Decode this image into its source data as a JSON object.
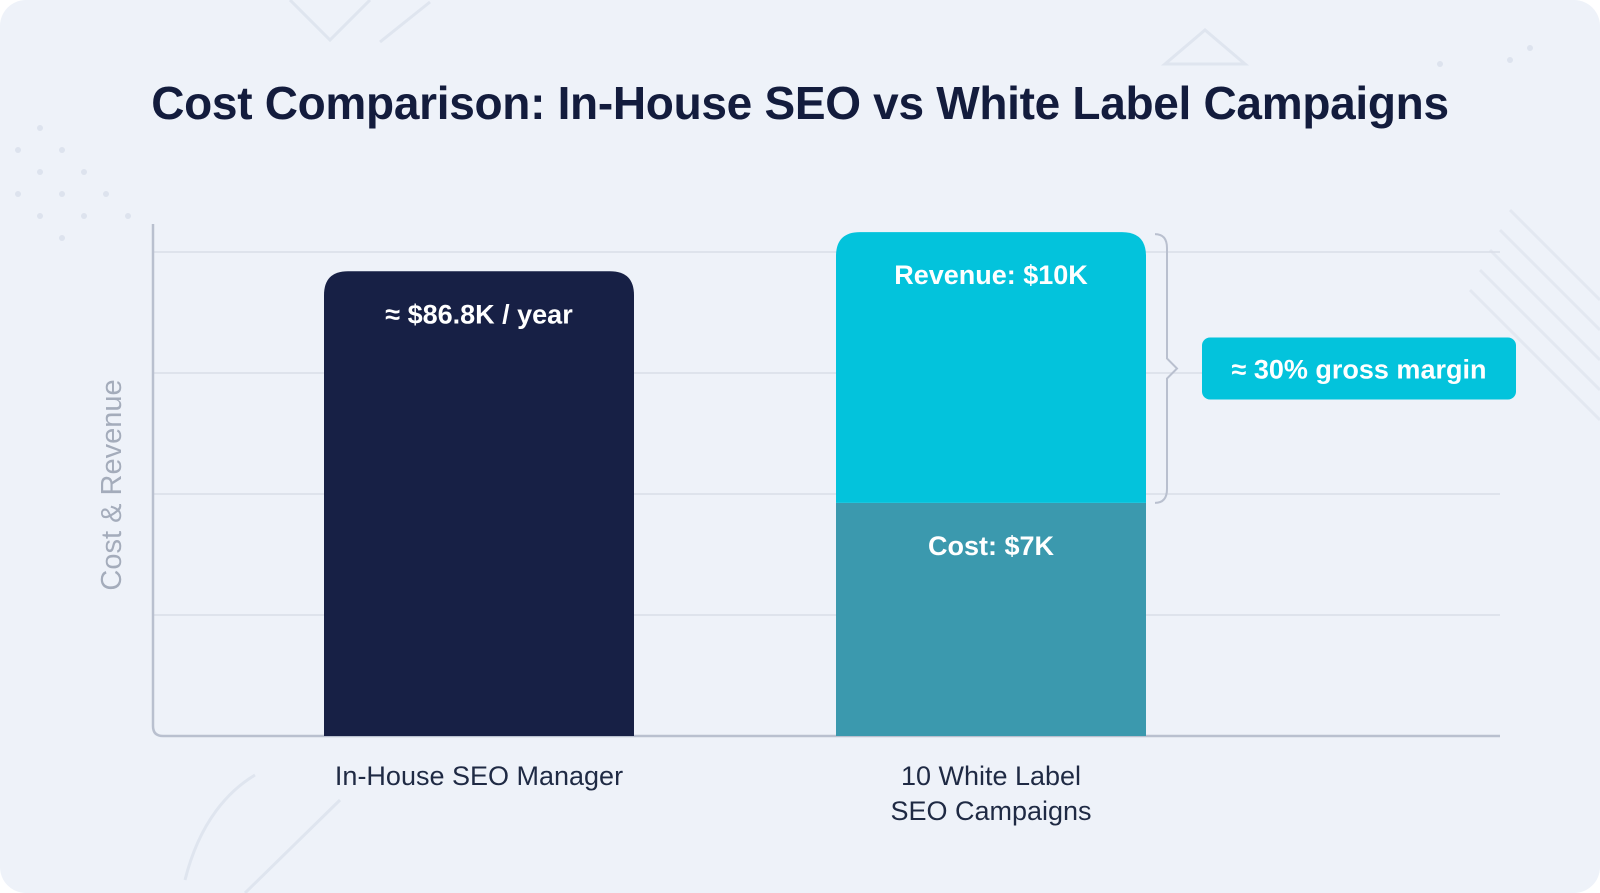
{
  "colors": {
    "background": "#eef2f9",
    "title": "#131c3d",
    "inhouse_bar": "#172045",
    "revenue_segment": "#03c3dc",
    "cost_segment": "#3b99ae",
    "annotation_bg": "#03c3dc",
    "axis": "#b9c0cf",
    "grid": "#d9dee8",
    "axis_label": "#a4acbb"
  },
  "chart_data": {
    "type": "bar",
    "title": "Cost Comparison: In-House SEO vs White Label Campaigns",
    "ylabel": "Cost & Revenue",
    "xlabel": "",
    "grid": true,
    "yaxis_ticks_shown": false,
    "categories": [
      {
        "lines": [
          "In-House SEO Manager"
        ]
      },
      {
        "lines": [
          "10 White Label",
          "SEO Campaigns"
        ]
      }
    ],
    "bars": [
      {
        "category_index": 0,
        "segments": [
          {
            "level_fraction": 0.867,
            "label": "≈ $86.8K / year",
            "color_key": "inhouse_bar"
          }
        ]
      },
      {
        "category_index": 1,
        "stacked": true,
        "segments": [
          {
            "name": "Cost",
            "level_fraction": 0.435,
            "label": "Cost: $7K",
            "color_key": "cost_segment"
          },
          {
            "name": "Revenue",
            "level_fraction": 0.94,
            "label": "Revenue: $10K",
            "color_key": "revenue_segment"
          }
        ]
      }
    ],
    "annotation": {
      "text": "≈ 30% gross margin",
      "brackets": "revenue above cost"
    }
  }
}
